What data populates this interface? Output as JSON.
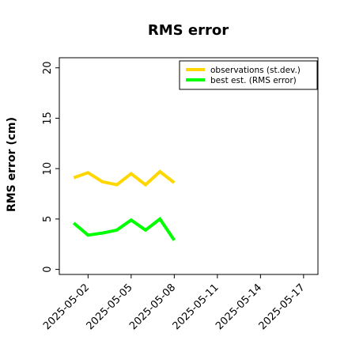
{
  "chart_data": {
    "type": "line",
    "title": "RMS error",
    "xlabel": "",
    "ylabel": "RMS error (cm)",
    "ylim": [
      -0.5,
      21
    ],
    "yticks": [
      0,
      5,
      10,
      15,
      20
    ],
    "xticks": [
      "2025-05-02",
      "2025-05-05",
      "2025-05-08",
      "2025-05-11",
      "2025-05-14",
      "2025-05-17"
    ],
    "highlighted_xtick": "2025-05-08",
    "highlight_color": "#228b22",
    "xlim": [
      "2025-04-30",
      "2025-05-18"
    ],
    "grid": false,
    "legend_position": "top-right",
    "x": [
      "2025-05-01",
      "2025-05-02",
      "2025-05-03",
      "2025-05-04",
      "2025-05-05",
      "2025-05-06",
      "2025-05-07",
      "2025-05-08"
    ],
    "series": [
      {
        "name": "observations (st.dev.)",
        "color": "#ffd700",
        "values": [
          9.1,
          9.6,
          8.7,
          8.4,
          9.5,
          8.4,
          9.7,
          8.6
        ]
      },
      {
        "name": "best est. (RMS error)",
        "color": "#00ff00",
        "values": [
          4.6,
          3.4,
          3.6,
          3.9,
          4.9,
          3.9,
          5.0,
          2.9
        ]
      }
    ]
  }
}
